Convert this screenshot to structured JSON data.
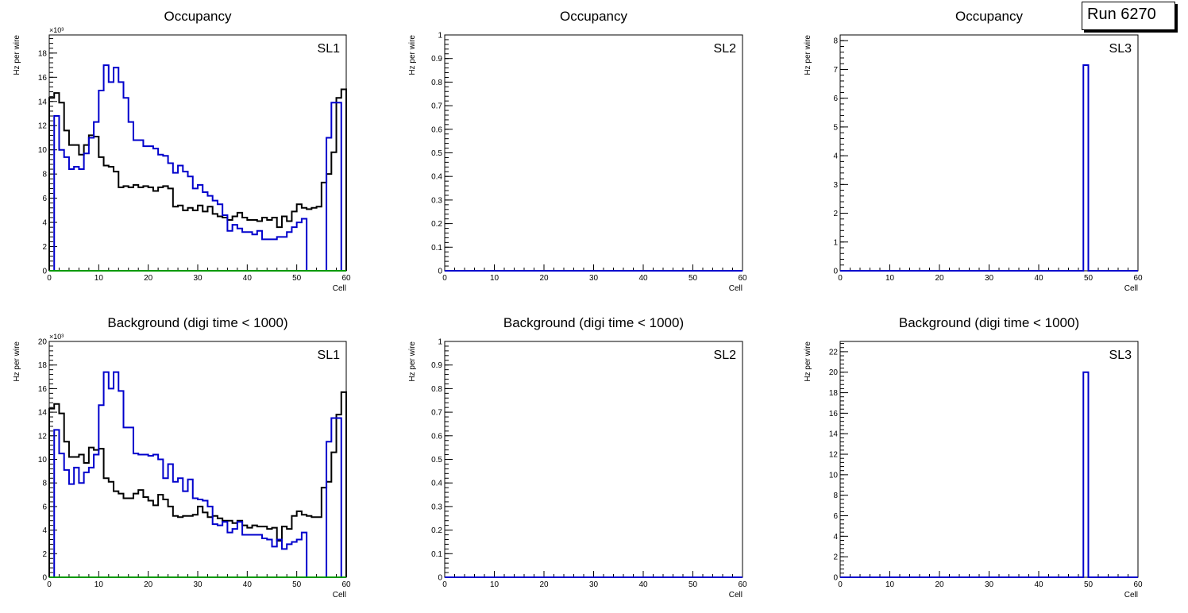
{
  "run_label": "Run 6270",
  "colors": {
    "black": "#000000",
    "blue": "#0000cc",
    "green": "#009900"
  },
  "chart_data": [
    {
      "type": "histogram",
      "title": "Occupancy",
      "label": "SL1",
      "xlabel": "Cell",
      "ylabel": "Hz per wire",
      "exponent": "×10³",
      "xlim": [
        0,
        60
      ],
      "ylim": [
        0,
        19.5
      ],
      "xticks": [
        0,
        10,
        20,
        30,
        40,
        50,
        60
      ],
      "yticks": [
        0,
        2,
        4,
        6,
        8,
        10,
        12,
        14,
        16,
        18
      ],
      "series": [
        {
          "name": "black",
          "color": "#000000",
          "values": [
            14.3,
            14.7,
            13.9,
            11.6,
            10.4,
            10.4,
            9.6,
            10.4,
            11.2,
            11.1,
            9.4,
            8.7,
            8.6,
            8.2,
            6.9,
            7.0,
            6.9,
            7.1,
            6.9,
            7.0,
            6.9,
            6.6,
            6.9,
            7.0,
            6.8,
            5.3,
            5.4,
            5.0,
            5.2,
            5.0,
            5.4,
            4.9,
            5.3,
            4.7,
            4.5,
            4.4,
            4.2,
            4.5,
            4.8,
            4.4,
            4.2,
            4.2,
            4.1,
            4.4,
            4.2,
            4.4,
            3.6,
            4.5,
            4.1,
            4.9,
            5.5,
            5.2,
            5.1,
            5.2,
            5.3,
            7.3,
            8.0,
            9.8,
            14.3,
            15.0
          ]
        },
        {
          "name": "blue",
          "color": "#0000cc",
          "values": [
            0.0,
            12.8,
            10.0,
            9.4,
            8.4,
            8.6,
            8.4,
            9.7,
            11.0,
            12.3,
            14.9,
            17.0,
            15.6,
            16.8,
            15.6,
            14.3,
            12.3,
            10.8,
            10.8,
            10.3,
            10.3,
            10.1,
            9.6,
            9.5,
            8.9,
            8.1,
            8.7,
            8.2,
            7.8,
            6.8,
            7.1,
            6.5,
            6.2,
            5.8,
            5.5,
            4.6,
            3.3,
            3.8,
            3.5,
            3.2,
            3.2,
            3.0,
            3.3,
            2.6,
            2.6,
            2.6,
            2.8,
            2.8,
            3.2,
            3.6,
            4.0,
            4.3,
            0.0,
            0.0,
            0.0,
            0.0,
            11.0,
            13.9,
            13.9,
            0.0
          ]
        },
        {
          "name": "green",
          "color": "#009900",
          "values": [
            0,
            0,
            0,
            0,
            0,
            0,
            0,
            0,
            0,
            0,
            0,
            0,
            0,
            0,
            0,
            0,
            0,
            0,
            0,
            0,
            0,
            0,
            0,
            0,
            0,
            0,
            0,
            0,
            0,
            0,
            0,
            0,
            0,
            0,
            0,
            0,
            0,
            0,
            0,
            0,
            0,
            0,
            0,
            0,
            0,
            0,
            0,
            0,
            0,
            0,
            0,
            0,
            0,
            0,
            0,
            0,
            0,
            0,
            0,
            0
          ]
        }
      ]
    },
    {
      "type": "histogram",
      "title": "Occupancy",
      "label": "SL2",
      "xlabel": "Cell",
      "ylabel": "Hz per wire",
      "exponent": "",
      "xlim": [
        0,
        60
      ],
      "ylim": [
        0,
        1
      ],
      "xticks": [
        0,
        10,
        20,
        30,
        40,
        50,
        60
      ],
      "yticks": [
        0,
        0.1,
        0.2,
        0.3,
        0.4,
        0.5,
        0.6,
        0.7,
        0.8,
        0.9,
        1
      ],
      "series": [
        {
          "name": "blue",
          "color": "#0000cc",
          "values": [
            0,
            0,
            0,
            0,
            0,
            0,
            0,
            0,
            0,
            0,
            0,
            0,
            0,
            0,
            0,
            0,
            0,
            0,
            0,
            0,
            0,
            0,
            0,
            0,
            0,
            0,
            0,
            0,
            0,
            0,
            0,
            0,
            0,
            0,
            0,
            0,
            0,
            0,
            0,
            0,
            0,
            0,
            0,
            0,
            0,
            0,
            0,
            0,
            0,
            0,
            0,
            0,
            0,
            0,
            0,
            0,
            0,
            0,
            0,
            0
          ]
        }
      ]
    },
    {
      "type": "histogram",
      "title": "Occupancy",
      "label": "SL3",
      "xlabel": "Cell",
      "ylabel": "Hz per wire",
      "exponent": "",
      "xlim": [
        0,
        60
      ],
      "ylim": [
        0,
        8.2
      ],
      "xticks": [
        0,
        10,
        20,
        30,
        40,
        50,
        60
      ],
      "yticks": [
        0,
        1,
        2,
        3,
        4,
        5,
        6,
        7,
        8
      ],
      "series": [
        {
          "name": "blue",
          "color": "#0000cc",
          "values": [
            0,
            0,
            0,
            0,
            0,
            0,
            0,
            0,
            0,
            0,
            0,
            0,
            0,
            0,
            0,
            0,
            0,
            0,
            0,
            0,
            0,
            0,
            0,
            0,
            0,
            0,
            0,
            0,
            0,
            0,
            0,
            0,
            0,
            0,
            0,
            0,
            0,
            0,
            0,
            0,
            0,
            0,
            0,
            0,
            0,
            0,
            0,
            0,
            0,
            7.15,
            0,
            0,
            0,
            0,
            0,
            0,
            0,
            0,
            0,
            0
          ]
        }
      ]
    },
    {
      "type": "histogram",
      "title": "Background (digi time < 1000)",
      "label": "SL1",
      "xlabel": "Cell",
      "ylabel": "Hz per wire",
      "exponent": "×10³",
      "xlim": [
        0,
        60
      ],
      "ylim": [
        0,
        20
      ],
      "xticks": [
        0,
        10,
        20,
        30,
        40,
        50,
        60
      ],
      "yticks": [
        0,
        2,
        4,
        6,
        8,
        10,
        12,
        14,
        16,
        18,
        20
      ],
      "series": [
        {
          "name": "black",
          "color": "#000000",
          "values": [
            14.3,
            14.7,
            13.9,
            11.5,
            10.2,
            10.2,
            10.4,
            9.7,
            11.0,
            10.8,
            10.9,
            8.4,
            8.1,
            7.3,
            7.1,
            6.7,
            6.7,
            7.1,
            7.4,
            6.8,
            6.5,
            6.1,
            7.0,
            6.6,
            6.0,
            5.2,
            5.1,
            5.2,
            5.2,
            5.3,
            6.0,
            5.5,
            5.1,
            5.2,
            5.0,
            4.8,
            4.8,
            4.6,
            4.8,
            4.4,
            4.2,
            4.4,
            4.3,
            4.3,
            4.1,
            4.2,
            3.1,
            4.3,
            4.1,
            5.2,
            5.6,
            5.3,
            5.2,
            5.1,
            5.1,
            7.6,
            8.1,
            10.6,
            13.8,
            15.7
          ]
        },
        {
          "name": "blue",
          "color": "#0000cc",
          "values": [
            0.0,
            12.5,
            10.5,
            9.1,
            7.9,
            9.3,
            8.0,
            8.9,
            9.3,
            10.4,
            14.6,
            17.4,
            16.0,
            17.4,
            15.8,
            12.7,
            12.7,
            10.5,
            10.4,
            10.4,
            10.3,
            10.4,
            10.0,
            8.4,
            9.6,
            8.1,
            8.4,
            7.3,
            8.3,
            6.7,
            6.6,
            6.5,
            6.0,
            4.5,
            4.4,
            4.7,
            3.8,
            4.1,
            4.7,
            3.6,
            3.6,
            3.6,
            3.6,
            3.3,
            3.2,
            2.6,
            3.2,
            2.4,
            2.8,
            3.0,
            3.2,
            3.8,
            0.0,
            0.0,
            0.0,
            0.0,
            11.5,
            13.5,
            13.5,
            0.0
          ]
        },
        {
          "name": "green",
          "color": "#009900",
          "values": [
            0,
            0,
            0,
            0,
            0,
            0,
            0,
            0,
            0,
            0,
            0,
            0,
            0,
            0,
            0,
            0,
            0,
            0,
            0,
            0,
            0,
            0,
            0,
            0,
            0,
            0,
            0,
            0,
            0,
            0,
            0,
            0,
            0,
            0,
            0,
            0,
            0,
            0,
            0,
            0,
            0,
            0,
            0,
            0,
            0,
            0,
            0,
            0,
            0,
            0,
            0,
            0,
            0,
            0,
            0,
            0,
            0,
            0,
            0,
            0
          ]
        }
      ]
    },
    {
      "type": "histogram",
      "title": "Background (digi time < 1000)",
      "label": "SL2",
      "xlabel": "Cell",
      "ylabel": "Hz per wire",
      "exponent": "",
      "xlim": [
        0,
        60
      ],
      "ylim": [
        0,
        1
      ],
      "xticks": [
        0,
        10,
        20,
        30,
        40,
        50,
        60
      ],
      "yticks": [
        0,
        0.1,
        0.2,
        0.3,
        0.4,
        0.5,
        0.6,
        0.7,
        0.8,
        0.9,
        1
      ],
      "series": [
        {
          "name": "blue",
          "color": "#0000cc",
          "values": [
            0,
            0,
            0,
            0,
            0,
            0,
            0,
            0,
            0,
            0,
            0,
            0,
            0,
            0,
            0,
            0,
            0,
            0,
            0,
            0,
            0,
            0,
            0,
            0,
            0,
            0,
            0,
            0,
            0,
            0,
            0,
            0,
            0,
            0,
            0,
            0,
            0,
            0,
            0,
            0,
            0,
            0,
            0,
            0,
            0,
            0,
            0,
            0,
            0,
            0,
            0,
            0,
            0,
            0,
            0,
            0,
            0,
            0,
            0,
            0
          ]
        }
      ]
    },
    {
      "type": "histogram",
      "title": "Background (digi time < 1000)",
      "label": "SL3",
      "xlabel": "Cell",
      "ylabel": "Hz per wire",
      "exponent": "",
      "xlim": [
        0,
        60
      ],
      "ylim": [
        0,
        23
      ],
      "xticks": [
        0,
        10,
        20,
        30,
        40,
        50,
        60
      ],
      "yticks": [
        0,
        2,
        4,
        6,
        8,
        10,
        12,
        14,
        16,
        18,
        20,
        22
      ],
      "series": [
        {
          "name": "blue",
          "color": "#0000cc",
          "values": [
            0,
            0,
            0,
            0,
            0,
            0,
            0,
            0,
            0,
            0,
            0,
            0,
            0,
            0,
            0,
            0,
            0,
            0,
            0,
            0,
            0,
            0,
            0,
            0,
            0,
            0,
            0,
            0,
            0,
            0,
            0,
            0,
            0,
            0,
            0,
            0,
            0,
            0,
            0,
            0,
            0,
            0,
            0,
            0,
            0,
            0,
            0,
            0,
            0,
            20.0,
            0,
            0,
            0,
            0,
            0,
            0,
            0,
            0,
            0,
            0
          ]
        }
      ]
    }
  ]
}
